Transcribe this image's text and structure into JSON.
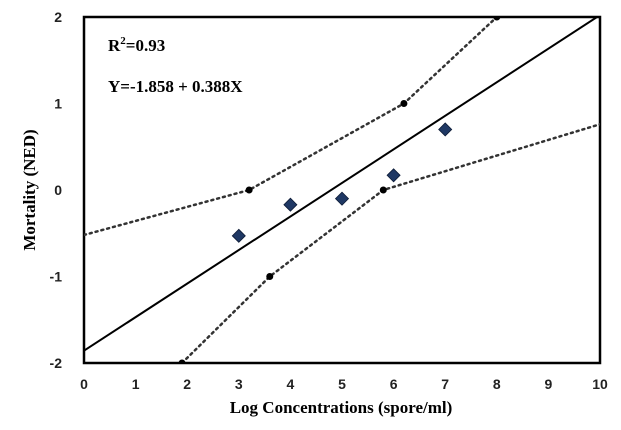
{
  "chart_data": {
    "type": "scatter",
    "xlabel": "Log Concentrations (spore/ml)",
    "ylabel": "Mortality (NED)",
    "xlim": [
      0,
      10
    ],
    "ylim": [
      -2,
      2
    ],
    "x_ticks": [
      "0",
      "1",
      "2",
      "3",
      "4",
      "5",
      "6",
      "7",
      "8",
      "9",
      "10"
    ],
    "y_ticks": [
      "2",
      "1",
      "0",
      "-1",
      "-2"
    ],
    "r2_label": "R",
    "r2_sup": "2",
    "r2_value": "=0.93",
    "equation": "Y=-1.858 + 0.388X",
    "regression": {
      "intercept": -1.858,
      "slope": 0.388
    },
    "points": [
      {
        "x": 3,
        "y": -0.53
      },
      {
        "x": 4,
        "y": -0.17
      },
      {
        "x": 5,
        "y": -0.1
      },
      {
        "x": 6,
        "y": 0.17
      },
      {
        "x": 7,
        "y": 0.7
      }
    ],
    "upper_band": {
      "x": [
        0,
        3.2,
        6.2,
        8
      ],
      "y": [
        -0.52,
        0,
        1,
        2
      ]
    },
    "lower_band": {
      "x": [
        1.9,
        3.6,
        5.8,
        10
      ],
      "y": [
        -2,
        -1,
        0,
        0.76
      ]
    },
    "band_markers": [
      {
        "x": 3.2,
        "y": 0
      },
      {
        "x": 6.2,
        "y": 1
      },
      {
        "x": 8,
        "y": 2
      },
      {
        "x": 1.9,
        "y": -2
      },
      {
        "x": 3.6,
        "y": -1
      },
      {
        "x": 5.8,
        "y": 0
      }
    ],
    "point_color": "#1f3864",
    "line_color": "#000000",
    "grid": false
  }
}
